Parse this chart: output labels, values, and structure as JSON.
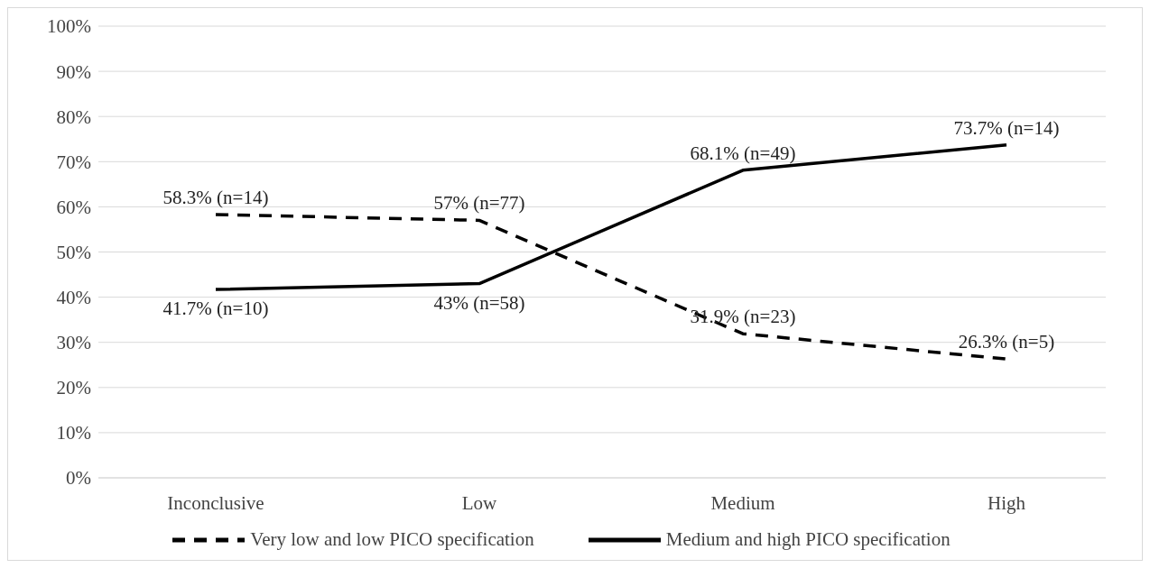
{
  "chart_data": {
    "type": "line",
    "categories": [
      "Inconclusive",
      "Low",
      "Medium",
      "High"
    ],
    "series": [
      {
        "name": "Very low and low PICO specification",
        "color": "#000000",
        "line_style": "dashed",
        "values": [
          58.3,
          57,
          31.9,
          26.3
        ],
        "value_labels": [
          "58.3% (n=14)",
          "57% (n=77)",
          "31.9% (n=23)",
          "26.3% (n=5)"
        ]
      },
      {
        "name": "Medium and high PICO specification",
        "color": "#000000",
        "line_style": "solid",
        "values": [
          41.7,
          43,
          68.1,
          73.7
        ],
        "value_labels": [
          "41.7% (n=10)",
          "43% (n=58)",
          "68.1% (n=49)",
          "73.7% (n=14)"
        ]
      }
    ],
    "ylim": [
      0,
      100
    ],
    "yticks": [
      {
        "value": 0,
        "label": "0%"
      },
      {
        "value": 10,
        "label": "10%"
      },
      {
        "value": 20,
        "label": "20%"
      },
      {
        "value": 30,
        "label": "30%"
      },
      {
        "value": 40,
        "label": "40%"
      },
      {
        "value": 50,
        "label": "50%"
      },
      {
        "value": 60,
        "label": "60%"
      },
      {
        "value": 70,
        "label": "70%"
      },
      {
        "value": 80,
        "label": "80%"
      },
      {
        "value": 90,
        "label": "90%"
      },
      {
        "value": 100,
        "label": "100%"
      }
    ],
    "grid": "y",
    "legend": "bottom",
    "marker": "none"
  }
}
